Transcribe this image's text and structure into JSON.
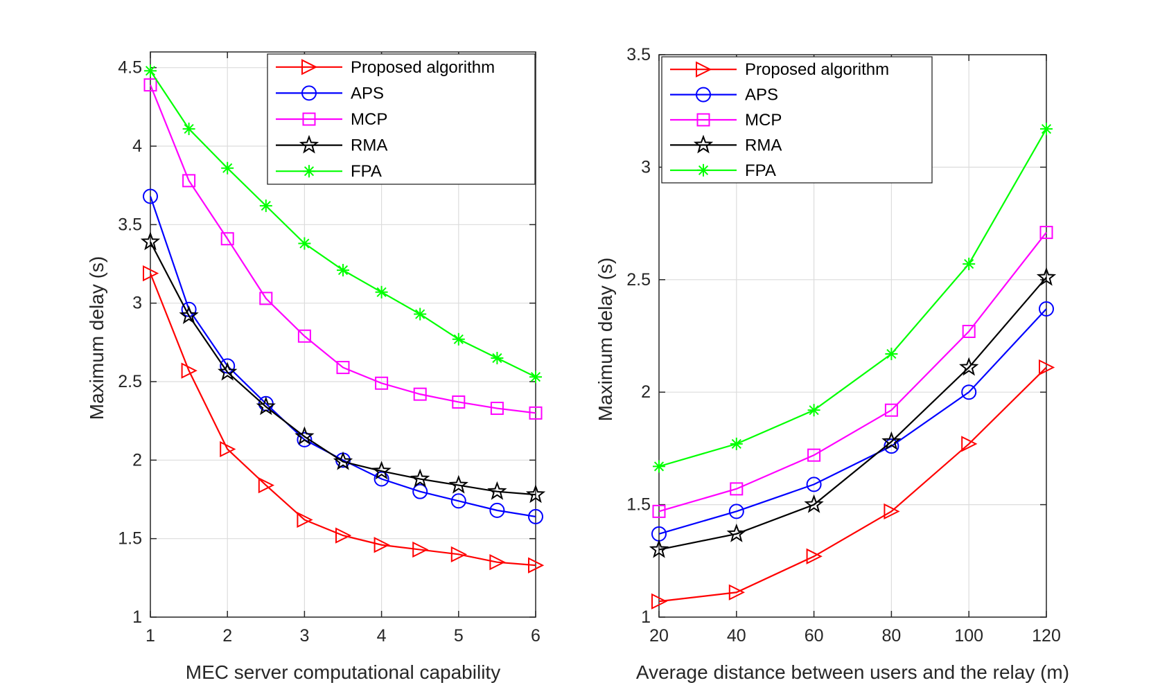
{
  "chart_data": [
    {
      "type": "line",
      "title": "",
      "xlabel": "MEC server computational capability",
      "ylabel": "Maximum delay (s)",
      "xlim": [
        1,
        6
      ],
      "ylim": [
        1,
        4.6
      ],
      "xticks": [
        1,
        2,
        3,
        4,
        5,
        6
      ],
      "yticks": [
        1,
        1.5,
        2,
        2.5,
        3,
        3.5,
        4,
        4.5
      ],
      "grid": true,
      "legend_position": "top-right",
      "x": [
        1,
        1.5,
        2,
        2.5,
        3,
        3.5,
        4,
        4.5,
        5,
        5.5,
        6
      ],
      "series": [
        {
          "name": "Proposed algorithm",
          "color": "#ff0000",
          "marker": "triangle-right",
          "values": [
            3.19,
            2.57,
            2.07,
            1.84,
            1.62,
            1.52,
            1.46,
            1.43,
            1.4,
            1.35,
            1.33
          ]
        },
        {
          "name": "APS",
          "color": "#0000ff",
          "marker": "circle",
          "values": [
            3.68,
            2.96,
            2.6,
            2.36,
            2.13,
            2.0,
            1.88,
            1.8,
            1.74,
            1.68,
            1.64
          ]
        },
        {
          "name": "MCP",
          "color": "#ff00ff",
          "marker": "square",
          "values": [
            4.39,
            3.78,
            3.41,
            3.03,
            2.79,
            2.59,
            2.49,
            2.42,
            2.37,
            2.33,
            2.3
          ]
        },
        {
          "name": "RMA",
          "color": "#000000",
          "marker": "star",
          "values": [
            3.39,
            2.92,
            2.56,
            2.34,
            2.15,
            1.99,
            1.93,
            1.88,
            1.84,
            1.8,
            1.78
          ]
        },
        {
          "name": "FPA",
          "color": "#00ff00",
          "marker": "asterisk",
          "values": [
            4.48,
            4.11,
            3.86,
            3.62,
            3.38,
            3.21,
            3.07,
            2.93,
            2.77,
            2.65,
            2.53
          ]
        }
      ]
    },
    {
      "type": "line",
      "title": "",
      "xlabel": "Average distance between users and the relay (m)",
      "ylabel": "Maximum delay (s)",
      "xlim": [
        20,
        120
      ],
      "ylim": [
        1,
        3.5
      ],
      "xticks": [
        20,
        40,
        60,
        80,
        100,
        120
      ],
      "yticks": [
        1,
        1.5,
        2,
        2.5,
        3,
        3.5
      ],
      "grid": true,
      "legend_position": "top-left",
      "x": [
        20,
        40,
        60,
        80,
        100,
        120
      ],
      "series": [
        {
          "name": "Proposed algorithm",
          "color": "#ff0000",
          "marker": "triangle-right",
          "values": [
            1.07,
            1.11,
            1.27,
            1.47,
            1.77,
            2.11
          ]
        },
        {
          "name": "APS",
          "color": "#0000ff",
          "marker": "circle",
          "values": [
            1.37,
            1.47,
            1.59,
            1.76,
            2.0,
            2.37
          ]
        },
        {
          "name": "MCP",
          "color": "#ff00ff",
          "marker": "square",
          "values": [
            1.47,
            1.57,
            1.72,
            1.92,
            2.27,
            2.71
          ]
        },
        {
          "name": "RMA",
          "color": "#000000",
          "marker": "star",
          "values": [
            1.3,
            1.37,
            1.5,
            1.78,
            2.11,
            2.51
          ]
        },
        {
          "name": "FPA",
          "color": "#00ff00",
          "marker": "asterisk",
          "values": [
            1.67,
            1.77,
            1.92,
            2.17,
            2.57,
            3.17
          ]
        }
      ]
    }
  ]
}
